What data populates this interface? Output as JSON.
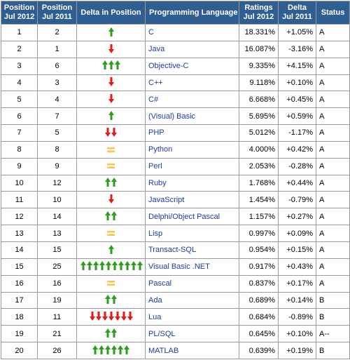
{
  "headers": {
    "pos2012": [
      "Position",
      "Jul 2012"
    ],
    "pos2011": [
      "Position",
      "Jul 2011"
    ],
    "delta_position": "Delta in Position",
    "language": "Programming Language",
    "rating": [
      "Ratings",
      "Jul 2012"
    ],
    "delta": [
      "Delta",
      "Jul 2011"
    ],
    "status": "Status"
  },
  "colors": {
    "header_bg": "#2f5f92",
    "arrow_up": "#2e9c1f",
    "arrow_down": "#e21a1a",
    "equal": "#f7c948",
    "link": "#1f3aa8"
  },
  "rows": [
    {
      "pos2012": "1",
      "pos2011": "2",
      "trend": "up",
      "count": 1,
      "language": "C",
      "rating": "18.331%",
      "delta": "+1.05%",
      "status": "A"
    },
    {
      "pos2012": "2",
      "pos2011": "1",
      "trend": "down",
      "count": 1,
      "language": "Java",
      "rating": "16.087%",
      "delta": "-3.16%",
      "status": "A"
    },
    {
      "pos2012": "3",
      "pos2011": "6",
      "trend": "up",
      "count": 3,
      "language": "Objective-C",
      "rating": "9.335%",
      "delta": "+4.15%",
      "status": "A"
    },
    {
      "pos2012": "4",
      "pos2011": "3",
      "trend": "down",
      "count": 1,
      "language": "C++",
      "rating": "9.118%",
      "delta": "+0.10%",
      "status": "A"
    },
    {
      "pos2012": "5",
      "pos2011": "4",
      "trend": "down",
      "count": 1,
      "language": "C#",
      "rating": "6.668%",
      "delta": "+0.45%",
      "status": "A"
    },
    {
      "pos2012": "6",
      "pos2011": "7",
      "trend": "up",
      "count": 1,
      "language": "(Visual) Basic",
      "rating": "5.695%",
      "delta": "+0.59%",
      "status": "A"
    },
    {
      "pos2012": "7",
      "pos2011": "5",
      "trend": "down",
      "count": 2,
      "language": "PHP",
      "rating": "5.012%",
      "delta": "-1.17%",
      "status": "A"
    },
    {
      "pos2012": "8",
      "pos2011": "8",
      "trend": "equal",
      "count": 1,
      "language": "Python",
      "rating": "4.000%",
      "delta": "+0.42%",
      "status": "A"
    },
    {
      "pos2012": "9",
      "pos2011": "9",
      "trend": "equal",
      "count": 1,
      "language": "Perl",
      "rating": "2.053%",
      "delta": "-0.28%",
      "status": "A"
    },
    {
      "pos2012": "10",
      "pos2011": "12",
      "trend": "up",
      "count": 2,
      "language": "Ruby",
      "rating": "1.768%",
      "delta": "+0.44%",
      "status": "A"
    },
    {
      "pos2012": "11",
      "pos2011": "10",
      "trend": "down",
      "count": 1,
      "language": "JavaScript",
      "rating": "1.454%",
      "delta": "-0.79%",
      "status": "A"
    },
    {
      "pos2012": "12",
      "pos2011": "14",
      "trend": "up",
      "count": 2,
      "language": "Delphi/Object Pascal",
      "rating": "1.157%",
      "delta": "+0.27%",
      "status": "A"
    },
    {
      "pos2012": "13",
      "pos2011": "13",
      "trend": "equal",
      "count": 1,
      "language": "Lisp",
      "rating": "0.997%",
      "delta": "+0.09%",
      "status": "A"
    },
    {
      "pos2012": "14",
      "pos2011": "15",
      "trend": "up",
      "count": 1,
      "language": "Transact-SQL",
      "rating": "0.954%",
      "delta": "+0.15%",
      "status": "A"
    },
    {
      "pos2012": "15",
      "pos2011": "25",
      "trend": "up",
      "count": 10,
      "language": "Visual Basic .NET",
      "rating": "0.917%",
      "delta": "+0.43%",
      "status": "A"
    },
    {
      "pos2012": "16",
      "pos2011": "16",
      "trend": "equal",
      "count": 1,
      "language": "Pascal",
      "rating": "0.837%",
      "delta": "+0.17%",
      "status": "A"
    },
    {
      "pos2012": "17",
      "pos2011": "19",
      "trend": "up",
      "count": 2,
      "language": "Ada",
      "rating": "0.689%",
      "delta": "+0.14%",
      "status": "B"
    },
    {
      "pos2012": "18",
      "pos2011": "11",
      "trend": "down",
      "count": 7,
      "language": "Lua",
      "rating": "0.684%",
      "delta": "-0.89%",
      "status": "B"
    },
    {
      "pos2012": "19",
      "pos2011": "21",
      "trend": "up",
      "count": 2,
      "language": "PL/SQL",
      "rating": "0.645%",
      "delta": "+0.10%",
      "status": "A--"
    },
    {
      "pos2012": "20",
      "pos2011": "26",
      "trend": "up",
      "count": 6,
      "language": "MATLAB",
      "rating": "0.639%",
      "delta": "+0.19%",
      "status": "B"
    }
  ]
}
